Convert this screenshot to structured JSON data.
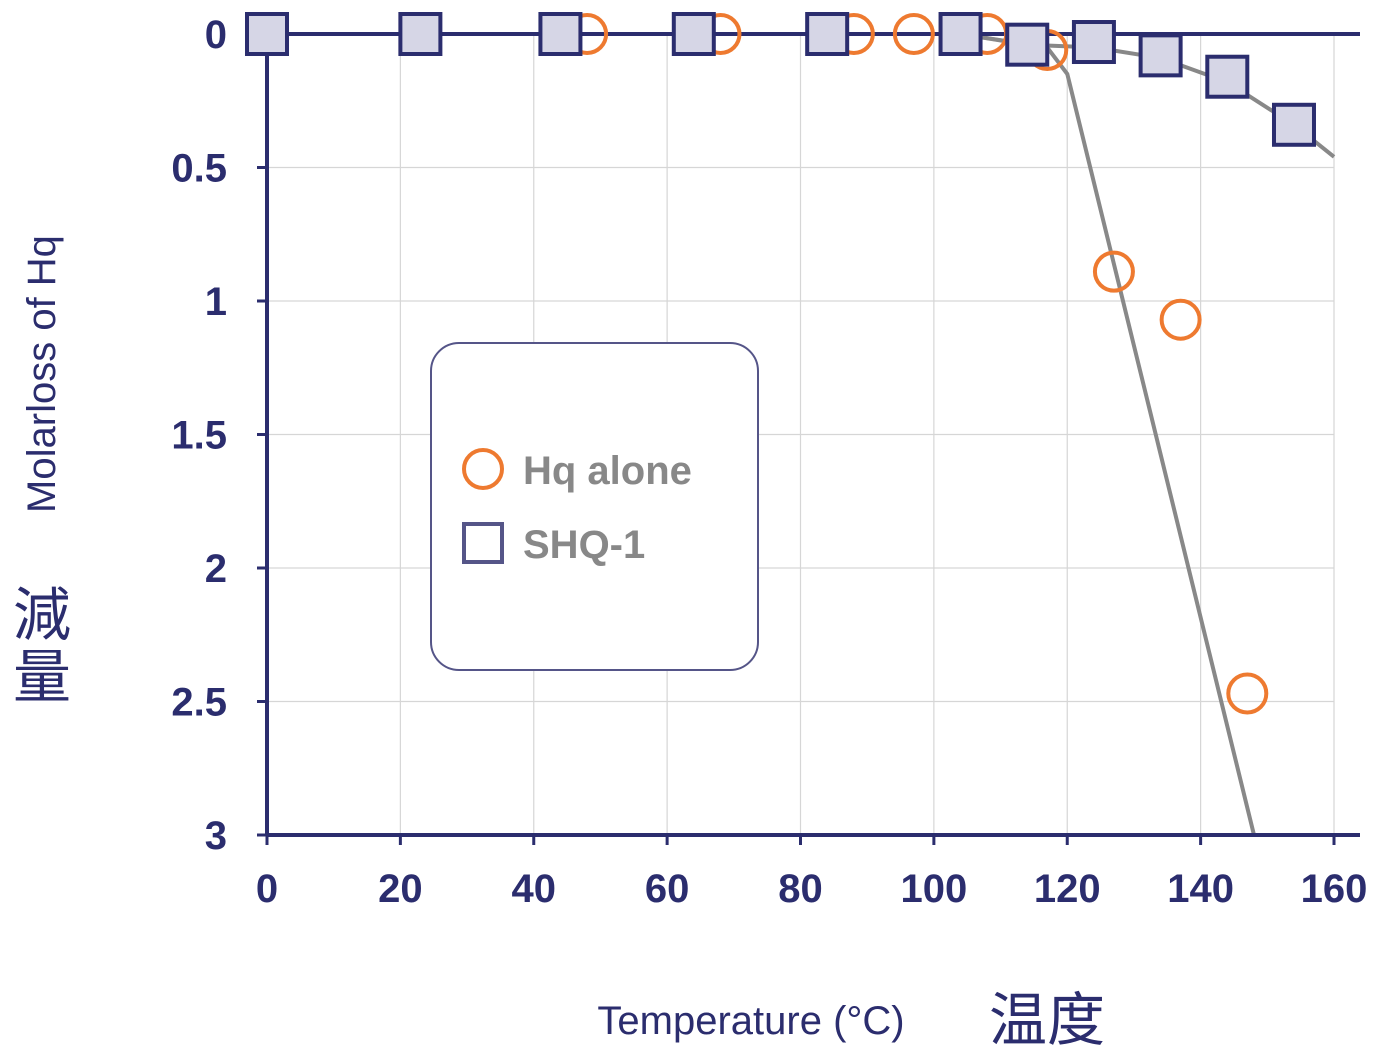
{
  "colors": {
    "axis": "#2b2d6e",
    "grid": "#d6d6d6",
    "line": "#888888",
    "hq_alone": "#ee7a30",
    "shq1_fill": "#d6d6e6",
    "shq1_stroke": "#2b2d6e",
    "legend_text": "#888888",
    "legend_border": "#555588"
  },
  "chart_data": {
    "type": "scatter",
    "xlabel": "Temperature (°C)",
    "xlabel_jp": "温度",
    "ylabel": "Molarloss of Hq",
    "ylabel_jp": "減量",
    "xlim": [
      0,
      160
    ],
    "ylim": [
      0,
      3
    ],
    "y_inverted": true,
    "x_ticks": [
      "0",
      "20",
      "40",
      "60",
      "80",
      "100",
      "120",
      "140",
      "160"
    ],
    "y_ticks": [
      "0",
      "0.5",
      "1",
      "1.5",
      "2",
      "2.5",
      "3"
    ],
    "grid": true,
    "legend_position": "center-left",
    "legend": [
      {
        "label": "Hq alone",
        "marker": "circle"
      },
      {
        "label": "SHQ-1",
        "marker": "square"
      }
    ],
    "series": [
      {
        "name": "Hq alone",
        "marker": "circle",
        "points": [
          [
            48,
            0
          ],
          [
            68,
            0
          ],
          [
            88,
            0
          ],
          [
            97,
            0
          ],
          [
            108,
            0
          ],
          [
            117,
            0.06
          ],
          [
            127,
            0.89
          ],
          [
            137,
            1.07
          ],
          [
            147,
            2.47
          ]
        ],
        "trend": [
          [
            0,
            0
          ],
          [
            104,
            0
          ],
          [
            117,
            0.05
          ],
          [
            120,
            0.15
          ],
          [
            148,
            3.0
          ]
        ]
      },
      {
        "name": "SHQ-1",
        "marker": "square",
        "points": [
          [
            0,
            0
          ],
          [
            23,
            0
          ],
          [
            44,
            0
          ],
          [
            64,
            0
          ],
          [
            84,
            0
          ],
          [
            104,
            0
          ],
          [
            114,
            0.04
          ],
          [
            124,
            0.03
          ],
          [
            134,
            0.08
          ],
          [
            144,
            0.16
          ],
          [
            154,
            0.34
          ]
        ],
        "trend": [
          [
            0,
            0
          ],
          [
            104,
            0
          ],
          [
            114,
            0.04
          ],
          [
            124,
            0.05
          ],
          [
            134,
            0.09
          ],
          [
            144,
            0.18
          ],
          [
            154,
            0.34
          ],
          [
            160,
            0.46
          ]
        ]
      }
    ]
  }
}
